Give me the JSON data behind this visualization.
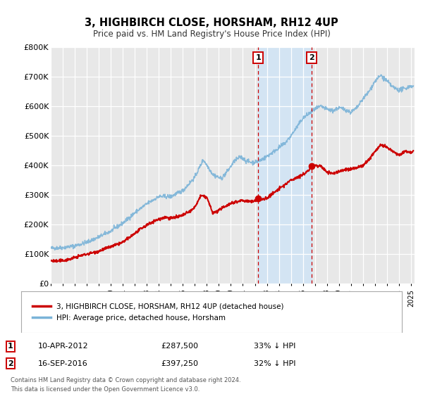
{
  "title": "3, HIGHBIRCH CLOSE, HORSHAM, RH12 4UP",
  "subtitle": "Price paid vs. HM Land Registry's House Price Index (HPI)",
  "ylim": [
    0,
    800000
  ],
  "xlim_start": 1995.0,
  "xlim_end": 2025.3,
  "hpi_color": "#7ab3d8",
  "price_color": "#cc0000",
  "marker_color": "#cc0000",
  "bg_color": "#e8e8e8",
  "span_color": "#d0e4f5",
  "grid_color": "#ffffff",
  "legend1": "3, HIGHBIRCH CLOSE, HORSHAM, RH12 4UP (detached house)",
  "legend2": "HPI: Average price, detached house, Horsham",
  "event1_label": "1",
  "event1_date": "10-APR-2012",
  "event1_price": "£287,500",
  "event1_pct": "33% ↓ HPI",
  "event1_x": 2012.27,
  "event1_y": 287500,
  "event2_label": "2",
  "event2_date": "16-SEP-2016",
  "event2_price": "£397,250",
  "event2_pct": "32% ↓ HPI",
  "event2_x": 2016.71,
  "event2_y": 397250,
  "footer1": "Contains HM Land Registry data © Crown copyright and database right 2024.",
  "footer2": "This data is licensed under the Open Government Licence v3.0.",
  "yticks": [
    0,
    100000,
    200000,
    300000,
    400000,
    500000,
    600000,
    700000,
    800000
  ],
  "ytick_labels": [
    "£0",
    "£100K",
    "£200K",
    "£300K",
    "£400K",
    "£500K",
    "£600K",
    "£700K",
    "£800K"
  ],
  "hpi_anchors": [
    [
      1995.0,
      120000
    ],
    [
      1996.0,
      122000
    ],
    [
      1997.0,
      128000
    ],
    [
      1998.0,
      140000
    ],
    [
      1999.0,
      158000
    ],
    [
      2000.0,
      178000
    ],
    [
      2001.0,
      205000
    ],
    [
      2002.0,
      240000
    ],
    [
      2003.0,
      270000
    ],
    [
      2004.0,
      295000
    ],
    [
      2005.0,
      295000
    ],
    [
      2006.0,
      315000
    ],
    [
      2007.0,
      360000
    ],
    [
      2007.7,
      420000
    ],
    [
      2008.5,
      370000
    ],
    [
      2009.2,
      355000
    ],
    [
      2009.8,
      385000
    ],
    [
      2010.3,
      415000
    ],
    [
      2010.8,
      430000
    ],
    [
      2011.3,
      415000
    ],
    [
      2011.8,
      410000
    ],
    [
      2012.3,
      415000
    ],
    [
      2012.8,
      425000
    ],
    [
      2013.5,
      445000
    ],
    [
      2014.0,
      460000
    ],
    [
      2014.5,
      475000
    ],
    [
      2015.0,
      500000
    ],
    [
      2015.5,
      530000
    ],
    [
      2016.0,
      560000
    ],
    [
      2016.5,
      575000
    ],
    [
      2017.0,
      590000
    ],
    [
      2017.5,
      600000
    ],
    [
      2018.0,
      590000
    ],
    [
      2018.5,
      585000
    ],
    [
      2019.0,
      595000
    ],
    [
      2019.5,
      590000
    ],
    [
      2020.0,
      580000
    ],
    [
      2020.5,
      595000
    ],
    [
      2021.0,
      625000
    ],
    [
      2021.5,
      650000
    ],
    [
      2022.0,
      685000
    ],
    [
      2022.5,
      705000
    ],
    [
      2023.0,
      685000
    ],
    [
      2023.5,
      665000
    ],
    [
      2024.0,
      655000
    ],
    [
      2024.5,
      660000
    ],
    [
      2025.0,
      670000
    ],
    [
      2025.2,
      665000
    ]
  ],
  "price_anchors": [
    [
      1995.0,
      78000
    ],
    [
      1995.5,
      76000
    ],
    [
      1996.0,
      78000
    ],
    [
      1996.5,
      82000
    ],
    [
      1997.0,
      88000
    ],
    [
      1997.5,
      95000
    ],
    [
      1998.0,
      100000
    ],
    [
      1998.5,
      105000
    ],
    [
      1999.0,
      110000
    ],
    [
      1999.5,
      118000
    ],
    [
      2000.0,
      125000
    ],
    [
      2000.5,
      132000
    ],
    [
      2001.0,
      140000
    ],
    [
      2001.5,
      155000
    ],
    [
      2002.0,
      170000
    ],
    [
      2002.5,
      185000
    ],
    [
      2003.0,
      198000
    ],
    [
      2003.5,
      210000
    ],
    [
      2004.0,
      218000
    ],
    [
      2004.5,
      225000
    ],
    [
      2005.0,
      222000
    ],
    [
      2005.5,
      225000
    ],
    [
      2006.0,
      232000
    ],
    [
      2006.5,
      242000
    ],
    [
      2007.0,
      258000
    ],
    [
      2007.5,
      298000
    ],
    [
      2008.0,
      292000
    ],
    [
      2008.5,
      238000
    ],
    [
      2009.0,
      248000
    ],
    [
      2009.5,
      262000
    ],
    [
      2010.0,
      272000
    ],
    [
      2010.5,
      278000
    ],
    [
      2011.0,
      282000
    ],
    [
      2011.5,
      278000
    ],
    [
      2012.0,
      280000
    ],
    [
      2012.27,
      287500
    ],
    [
      2012.5,
      283000
    ],
    [
      2013.0,
      290000
    ],
    [
      2013.5,
      305000
    ],
    [
      2014.0,
      320000
    ],
    [
      2014.5,
      335000
    ],
    [
      2015.0,
      350000
    ],
    [
      2015.5,
      360000
    ],
    [
      2016.0,
      368000
    ],
    [
      2016.5,
      385000
    ],
    [
      2016.71,
      397250
    ],
    [
      2017.0,
      400000
    ],
    [
      2017.5,
      398000
    ],
    [
      2018.0,
      378000
    ],
    [
      2018.5,
      372000
    ],
    [
      2019.0,
      380000
    ],
    [
      2019.5,
      385000
    ],
    [
      2020.0,
      388000
    ],
    [
      2020.5,
      392000
    ],
    [
      2021.0,
      400000
    ],
    [
      2021.5,
      420000
    ],
    [
      2022.0,
      448000
    ],
    [
      2022.5,
      470000
    ],
    [
      2023.0,
      460000
    ],
    [
      2023.5,
      448000
    ],
    [
      2024.0,
      435000
    ],
    [
      2024.5,
      448000
    ],
    [
      2025.0,
      445000
    ],
    [
      2025.2,
      450000
    ]
  ]
}
